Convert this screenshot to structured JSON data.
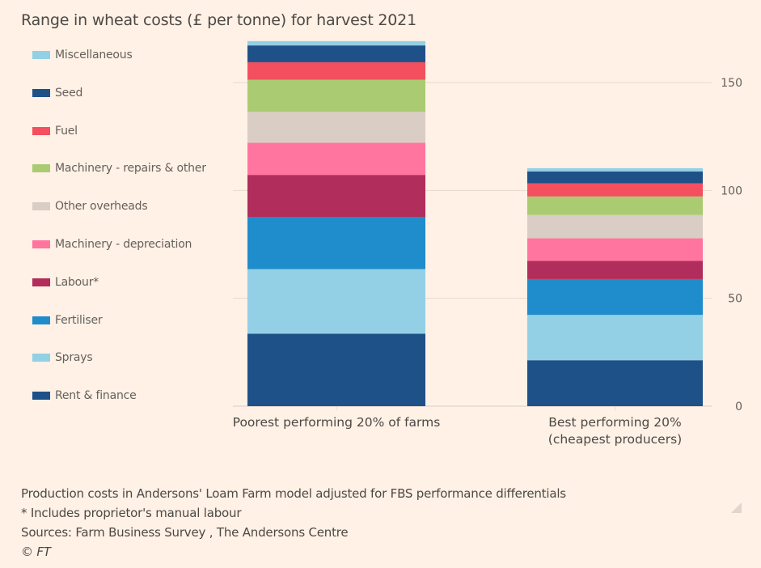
{
  "chart_data": {
    "type": "bar",
    "stacked": true,
    "title": "Range in wheat costs (£ per tonne) for harvest 2021",
    "xlabel": "",
    "ylabel": "",
    "ylim": [
      0,
      170
    ],
    "yticks": [
      0,
      50,
      100,
      150
    ],
    "y_axis_side": "right",
    "grid": true,
    "legend_position": "left",
    "categories": [
      [
        "Poorest performing 20% of farms"
      ],
      [
        "Best performing 20%",
        "(cheapest producers)"
      ]
    ],
    "series": [
      {
        "name": "Rent & finance",
        "color": "#1f5189",
        "values": [
          33.6,
          21.3
        ]
      },
      {
        "name": "Sprays",
        "color": "#93d0e5",
        "values": [
          29.9,
          21.0
        ]
      },
      {
        "name": "Fertiliser",
        "color": "#1f8ccc",
        "values": [
          24.1,
          16.6
        ]
      },
      {
        "name": "Labour*",
        "color": "#b02d5c",
        "values": [
          19.6,
          8.5
        ]
      },
      {
        "name": "Machinery - depreciation",
        "color": "#ff75a0",
        "values": [
          14.9,
          10.4
        ]
      },
      {
        "name": "Other overheads",
        "color": "#d9cdc5",
        "values": [
          14.3,
          10.8
        ]
      },
      {
        "name": "Machinery - repairs & other",
        "color": "#aacb72",
        "values": [
          14.9,
          8.6
        ]
      },
      {
        "name": "Fuel",
        "color": "#f34f5f",
        "values": [
          8.1,
          6.1
        ]
      },
      {
        "name": "Seed",
        "color": "#1f5189",
        "values": [
          7.8,
          5.5
        ]
      },
      {
        "name": "Miscellaneous",
        "color": "#93d0e5",
        "values": [
          2.0,
          1.5
        ]
      }
    ],
    "legend_order": [
      "Miscellaneous",
      "Seed",
      "Fuel",
      "Machinery - repairs & other",
      "Other overheads",
      "Machinery - depreciation",
      "Labour*",
      "Fertiliser",
      "Sprays",
      "Rent & finance"
    ]
  },
  "footer": {
    "note": "Production costs in Andersons' Loam Farm model adjusted for FBS performance differentials",
    "footnote": "* Includes proprietor's manual labour",
    "sources": "Sources: Farm Business Survey , The Andersons Centre",
    "copyright": "© FT"
  },
  "colors": {
    "background": "#fff1e5",
    "gridline": "#e6d9ce",
    "text": "#66605c"
  }
}
